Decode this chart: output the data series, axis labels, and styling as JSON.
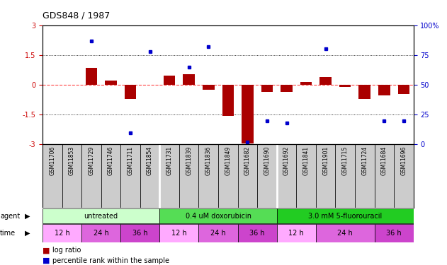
{
  "title": "GDS848 / 1987",
  "samples": [
    "GSM11706",
    "GSM11853",
    "GSM11729",
    "GSM11746",
    "GSM11711",
    "GSM11854",
    "GSM11731",
    "GSM11839",
    "GSM11836",
    "GSM11849",
    "GSM11682",
    "GSM11690",
    "GSM11692",
    "GSM11841",
    "GSM11901",
    "GSM11715",
    "GSM11724",
    "GSM11684",
    "GSM11696"
  ],
  "log_ratio": [
    0.0,
    0.0,
    0.85,
    0.2,
    -0.7,
    0.0,
    0.45,
    0.55,
    -0.25,
    -1.55,
    -2.95,
    -0.35,
    -0.35,
    0.15,
    0.4,
    -0.1,
    -0.7,
    -0.55,
    -0.45
  ],
  "percentile": [
    null,
    null,
    87,
    null,
    10,
    78,
    null,
    65,
    82,
    null,
    2,
    20,
    18,
    null,
    80,
    null,
    null,
    20,
    20
  ],
  "ylim": [
    -3,
    3
  ],
  "right_ylim": [
    0,
    100
  ],
  "dotted_lines": [
    1.5,
    -1.5
  ],
  "bar_color": "#aa0000",
  "dot_color": "#0000cc",
  "zero_line_color": "#ff4444",
  "agent_groups": [
    {
      "label": "untreated",
      "start": 0,
      "end": 6,
      "color": "#ccffcc"
    },
    {
      "label": "0.4 uM doxorubicin",
      "start": 6,
      "end": 12,
      "color": "#55dd55"
    },
    {
      "label": "3.0 mM 5-fluorouracil",
      "start": 12,
      "end": 19,
      "color": "#22cc22"
    }
  ],
  "time_groups": [
    {
      "label": "12 h",
      "start": 0,
      "end": 2,
      "color": "#ffaaff"
    },
    {
      "label": "24 h",
      "start": 2,
      "end": 4,
      "color": "#dd66dd"
    },
    {
      "label": "36 h",
      "start": 4,
      "end": 6,
      "color": "#cc44cc"
    },
    {
      "label": "12 h",
      "start": 6,
      "end": 8,
      "color": "#ffaaff"
    },
    {
      "label": "24 h",
      "start": 8,
      "end": 10,
      "color": "#dd66dd"
    },
    {
      "label": "36 h",
      "start": 10,
      "end": 12,
      "color": "#cc44cc"
    },
    {
      "label": "12 h",
      "start": 12,
      "end": 14,
      "color": "#ffaaff"
    },
    {
      "label": "24 h",
      "start": 14,
      "end": 17,
      "color": "#dd66dd"
    },
    {
      "label": "36 h",
      "start": 17,
      "end": 19,
      "color": "#cc44cc"
    }
  ],
  "sample_bg": "#cccccc",
  "background_color": "#ffffff",
  "tick_label_color": "#cc0000",
  "right_tick_color": "#0000cc",
  "group_separators": [
    5.5,
    11.5
  ]
}
